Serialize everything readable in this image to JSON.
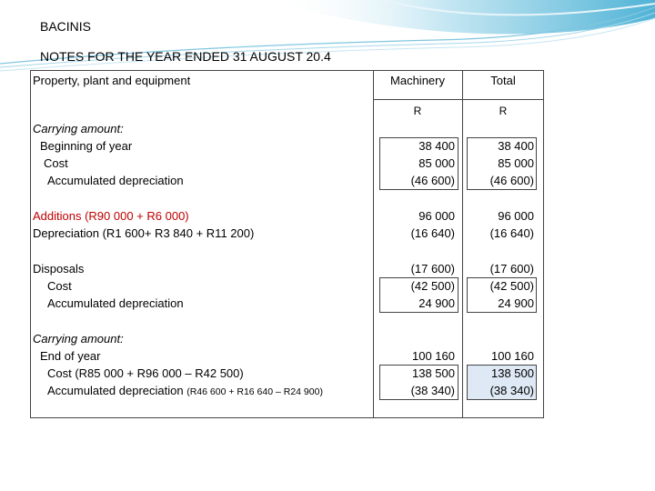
{
  "header": {
    "company": "BACINIS",
    "title": "NOTES FOR THE YEAR ENDED 31 AUGUST 20.4"
  },
  "table": {
    "section_label": "Property, plant and equipment",
    "columns": [
      {
        "label": "Machinery",
        "unit": "R"
      },
      {
        "label": "Total",
        "unit": "R"
      }
    ],
    "opening": {
      "title": "Carrying amount:",
      "subtitle": "Beginning of year",
      "cost_label": "Cost",
      "depr_label": "Accumulated depreciation",
      "machinery": [
        "38 400",
        "85 000",
        "(46 600)"
      ],
      "total": [
        "38 400",
        "85 000",
        "(46 600)"
      ]
    },
    "movements": {
      "additions_label": "Additions (R90 000 + R6 000)",
      "depreciation_label": "Depreciation (R1 600+ R3 840 + R11 200)",
      "machinery": [
        "96 000",
        "(16 640)"
      ],
      "total": [
        "96 000",
        "(16 640)"
      ]
    },
    "disposals": {
      "title": "Disposals",
      "cost_label": "Cost",
      "depr_label": "Accumulated depreciation",
      "machinery": [
        "(17 600)",
        "(42 500)",
        "24 900"
      ],
      "total": [
        "(17 600)",
        "(42 500)",
        "24 900"
      ]
    },
    "closing": {
      "title": "Carrying amount:",
      "subtitle": "End of year",
      "cost_label": "Cost (R85 000 + R96 000 – R42 500)",
      "depr_label": "Accumulated depreciation",
      "depr_detail": "(R46 600 + R16 640 – R24 900)",
      "machinery": [
        "100 160",
        "138 500",
        "(38 340)"
      ],
      "total": [
        "100 160",
        "138 500",
        "(38 340)"
      ]
    }
  },
  "colors": {
    "accent_blue": "#5bb8d8",
    "highlight": "#dee9f5",
    "red_text": "#c00000"
  }
}
